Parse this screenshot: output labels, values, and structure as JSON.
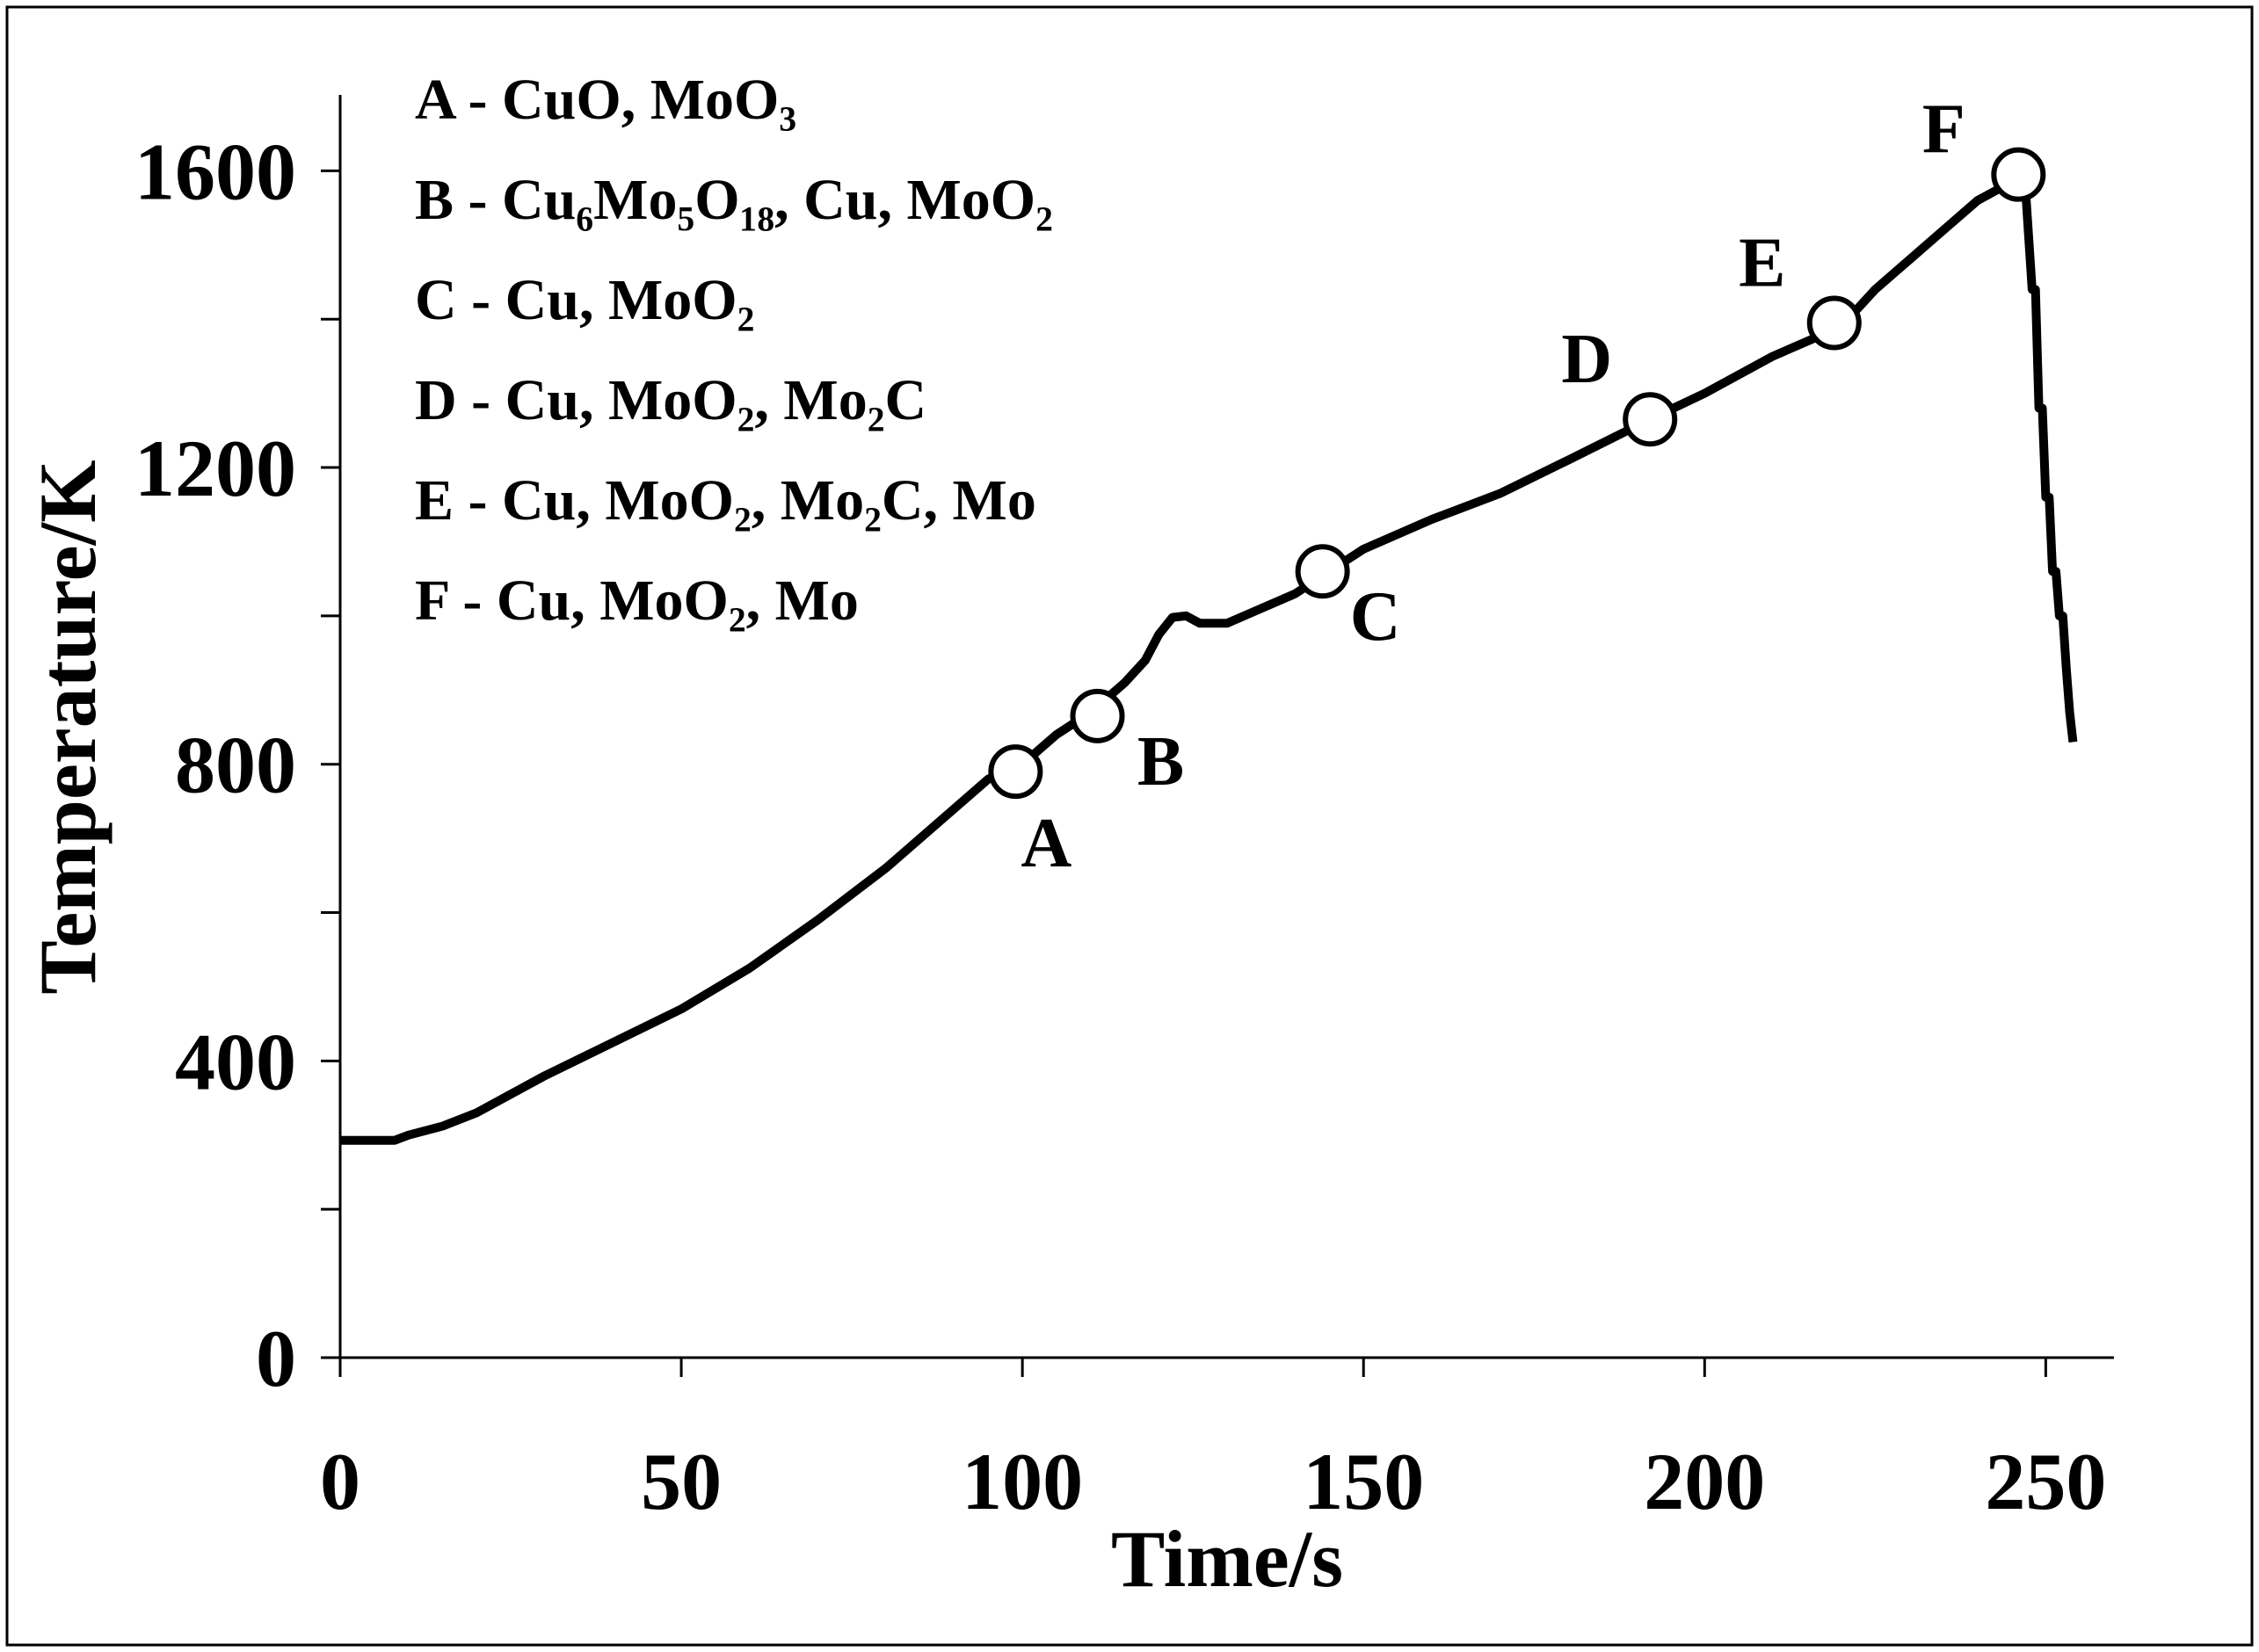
{
  "chart_data": {
    "type": "line",
    "title": "",
    "xlabel": "Time/s",
    "ylabel": "Temperature/K",
    "xlim": [
      0,
      260
    ],
    "ylim": [
      0,
      1700
    ],
    "x_ticks": [
      0,
      50,
      100,
      150,
      200,
      250
    ],
    "x_tick_labels": [
      "0",
      "50",
      "100",
      "150",
      "200",
      "250"
    ],
    "y_ticks": [
      0,
      200,
      400,
      600,
      800,
      1000,
      1200,
      1400,
      1600
    ],
    "y_tick_labels": [
      "0",
      "",
      "400",
      "",
      "800",
      "",
      "1200",
      "",
      "1600"
    ],
    "grid": false,
    "series": [
      {
        "name": "Temperature",
        "x": [
          0,
          8,
          10,
          15,
          20,
          30,
          40,
          50,
          60,
          70,
          80,
          90,
          95,
          100,
          105,
          110,
          115,
          118,
          120,
          122,
          124,
          126,
          130,
          135,
          140,
          145,
          150,
          160,
          170,
          180,
          192,
          200,
          210,
          220,
          225,
          230,
          235,
          240,
          243,
          245,
          246,
          247,
          248,
          248.5,
          249,
          249.5,
          250,
          250.5,
          251,
          251.5,
          252,
          252.5,
          253,
          253.5,
          254
        ],
        "y": [
          293,
          293,
          300,
          312,
          330,
          380,
          425,
          470,
          525,
          590,
          660,
          740,
          780,
          800,
          840,
          870,
          910,
          940,
          975,
          998,
          1000,
          990,
          990,
          1010,
          1030,
          1060,
          1090,
          1130,
          1165,
          1210,
          1265,
          1300,
          1350,
          1390,
          1440,
          1480,
          1520,
          1560,
          1575,
          1590,
          1595,
          1580,
          1440,
          1440,
          1280,
          1280,
          1160,
          1160,
          1060,
          1060,
          1000,
          1000,
          930,
          870,
          830
        ]
      }
    ],
    "markers": [
      {
        "label": "A",
        "x": 99,
        "y": 790
      },
      {
        "label": "B",
        "x": 111,
        "y": 865
      },
      {
        "label": "C",
        "x": 144,
        "y": 1060
      },
      {
        "label": "D",
        "x": 192,
        "y": 1265
      },
      {
        "label": "E",
        "x": 219,
        "y": 1395
      },
      {
        "label": "F",
        "x": 246,
        "y": 1595
      }
    ],
    "legend_placement": "top-left",
    "legend": [
      {
        "key": "A",
        "text": "A - CuO, MoO₃"
      },
      {
        "key": "B",
        "text": "B - Cu₆Mo₅O₁₈, Cu, MoO₂"
      },
      {
        "key": "C",
        "text": "C - Cu, MoO₂"
      },
      {
        "key": "D",
        "text": "D - Cu, MoO₂, Mo₂C"
      },
      {
        "key": "E",
        "text": "E - Cu, MoO₂, Mo₂C, Mo"
      },
      {
        "key": "F",
        "text": "F - Cu, MoO₂,  Mo"
      }
    ]
  },
  "colors": {
    "line": "#000000",
    "axis": "#000000",
    "marker_fill": "#ffffff",
    "background": "#ffffff"
  }
}
